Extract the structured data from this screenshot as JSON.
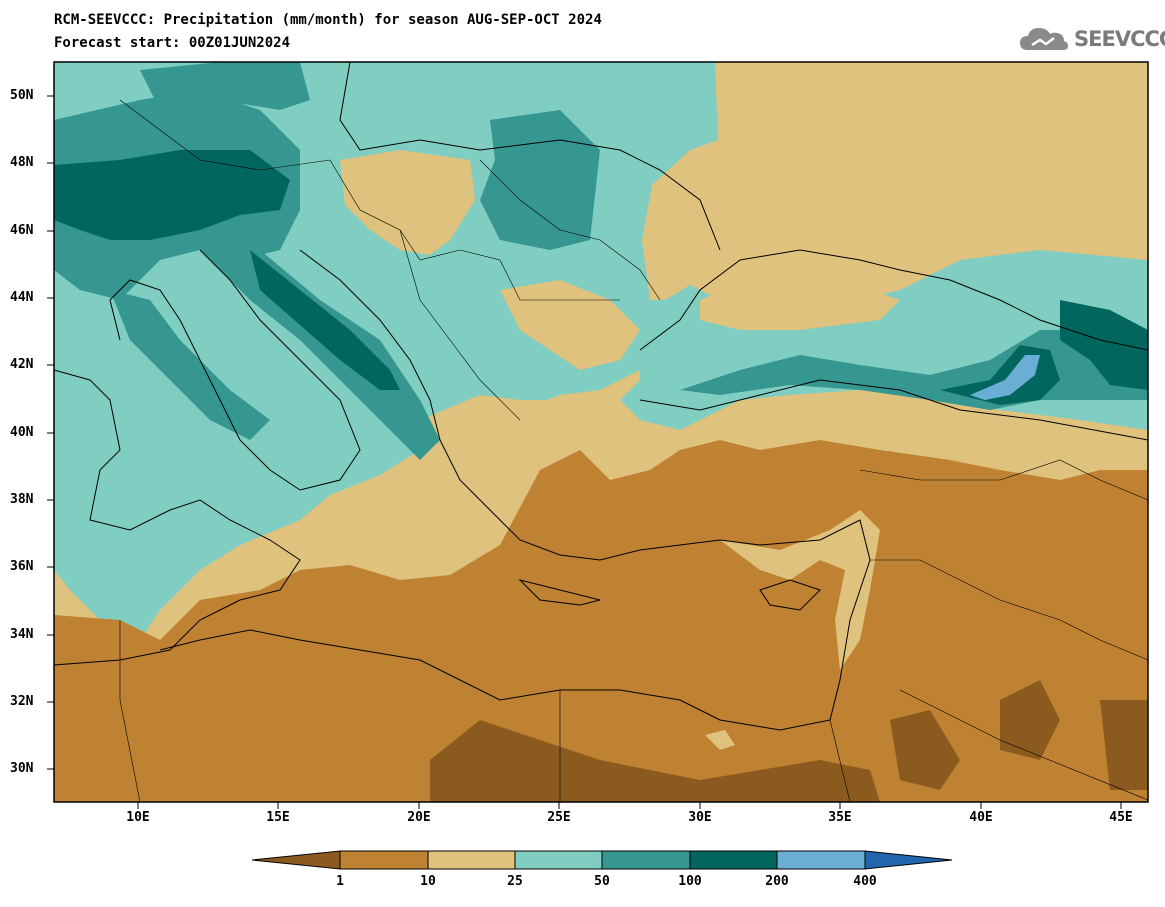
{
  "header": {
    "title_line1": "RCM-SEEVCCC: Precipitation (mm/month) for season AUG-SEP-OCT 2024",
    "title_line2": "Forecast start: 00Z01JUN2024",
    "logo_text": "SEEVCCC"
  },
  "map": {
    "lon_range": [
      7,
      46
    ],
    "lat_range": [
      29,
      51
    ],
    "lat_ticks": [
      "50N",
      "48N",
      "46N",
      "44N",
      "42N",
      "40N",
      "38N",
      "36N",
      "34N",
      "32N",
      "30N"
    ],
    "lat_values": [
      50,
      48,
      46,
      44,
      42,
      40,
      38,
      36,
      34,
      32,
      30
    ],
    "lon_ticks": [
      "10E",
      "15E",
      "20E",
      "25E",
      "30E",
      "35E",
      "40E",
      "45E"
    ],
    "lon_values": [
      10,
      15,
      20,
      25,
      30,
      35,
      40,
      45
    ]
  },
  "colorbar": {
    "labels": [
      "1",
      "10",
      "25",
      "50",
      "100",
      "200",
      "400"
    ],
    "colors": [
      "#8b5a1f",
      "#bf8233",
      "#dfc27d",
      "#80cdc1",
      "#35978f",
      "#01665e",
      "#6aaed6",
      "#2166ac"
    ]
  }
}
